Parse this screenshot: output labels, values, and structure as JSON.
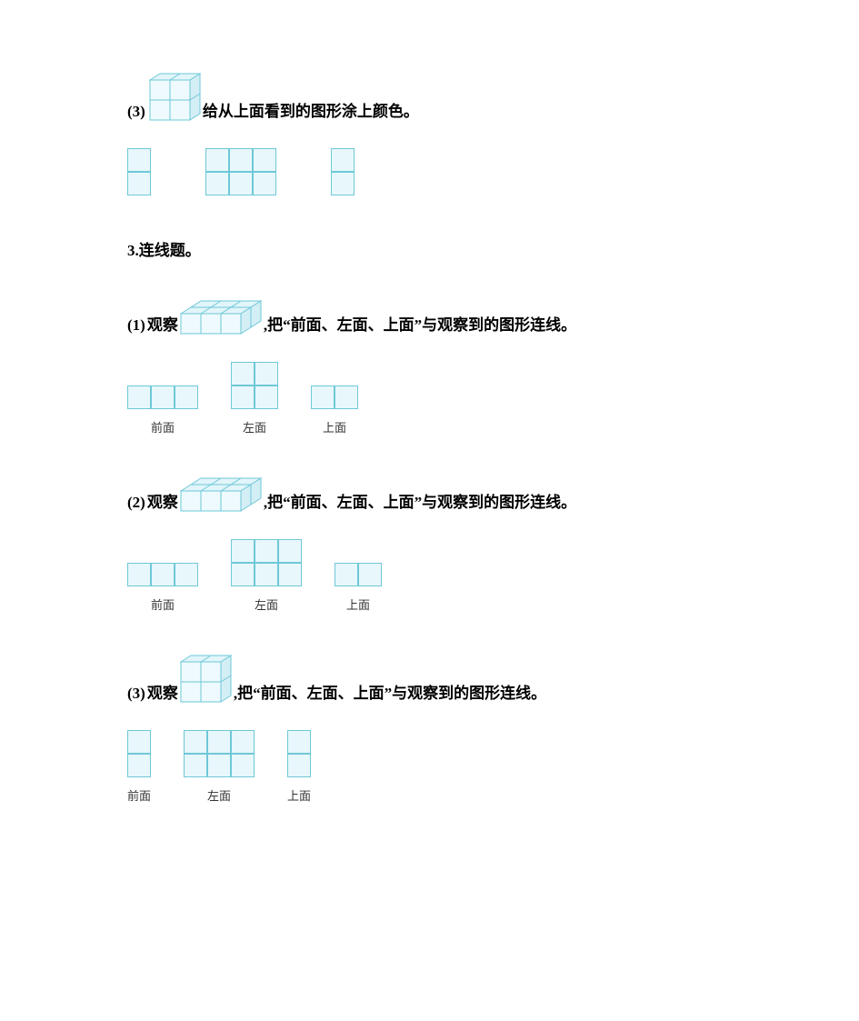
{
  "colors": {
    "cube_fill_top": "#e2f5fa",
    "cube_fill_side": "#d4eef5",
    "cube_fill_front": "#eefafd",
    "cube_stroke": "#6ec8d8",
    "cell_fill": "#e8f7fb",
    "cell_stroke": "#6ec8d8",
    "text": "#000000",
    "label_text": "#333333"
  },
  "cell_size": 26,
  "q3": {
    "num": "(3)",
    "text_after_cube": "给从上面看到的图形涂上颜色。",
    "cube": {
      "w": 2,
      "d": 1,
      "h": 2
    },
    "options": [
      {
        "rows": 2,
        "cols": 1
      },
      {
        "rows": 2,
        "cols": 3
      },
      {
        "rows": 2,
        "cols": 1
      }
    ]
  },
  "section3_heading": "3.连线题。",
  "matching": [
    {
      "num": "(1)",
      "pre": "观察",
      "post": ",把“前面、左面、上面”与观察到的图形连线。",
      "cube": {
        "w": 3,
        "d": 2,
        "h": 1
      },
      "options": [
        {
          "rows": 1,
          "cols": 3,
          "label": "前面"
        },
        {
          "rows": 2,
          "cols": 2,
          "label": "左面"
        },
        {
          "rows": 1,
          "cols": 2,
          "label": "上面"
        }
      ]
    },
    {
      "num": "(2)",
      "pre": "观察",
      "post": ",把“前面、左面、上面”与观察到的图形连线。",
      "cube": {
        "w": 3,
        "d": 2,
        "h": 1
      },
      "options": [
        {
          "rows": 1,
          "cols": 3,
          "label": "前面"
        },
        {
          "rows": 2,
          "cols": 3,
          "label": "左面"
        },
        {
          "rows": 1,
          "cols": 2,
          "label": "上面"
        }
      ]
    },
    {
      "num": "(3)",
      "pre": "观察",
      "post": ",把“前面、左面、上面”与观察到的图形连线。",
      "cube": {
        "w": 2,
        "d": 1,
        "h": 2
      },
      "options": [
        {
          "rows": 2,
          "cols": 1,
          "label": "前面"
        },
        {
          "rows": 2,
          "cols": 3,
          "label": "左面"
        },
        {
          "rows": 2,
          "cols": 1,
          "label": "上面"
        }
      ]
    }
  ]
}
